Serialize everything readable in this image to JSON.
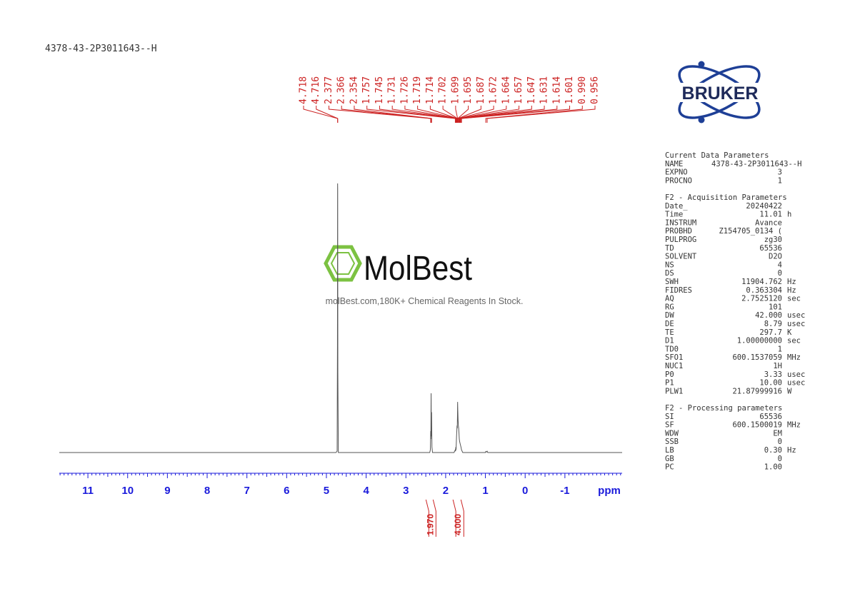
{
  "header": "4378-43-2P3011643--H",
  "chart_data": {
    "type": "line",
    "x_label": "ppm",
    "x_reversed": true,
    "xlim": [
      11.72,
      -2.44
    ],
    "xticks": [
      11,
      10,
      9,
      8,
      7,
      6,
      5,
      4,
      3,
      2,
      1,
      0,
      -1
    ],
    "ylim": [
      0,
      100
    ],
    "color": "#555555",
    "x": [
      11.72,
      4.76,
      4.73,
      4.722,
      4.718,
      4.716,
      4.712,
      4.7,
      2.4,
      2.385,
      2.377,
      2.372,
      2.366,
      2.36,
      2.354,
      2.345,
      2.33,
      1.79,
      1.757,
      1.751,
      1.745,
      1.738,
      1.731,
      1.726,
      1.719,
      1.714,
      1.708,
      1.702,
      1.699,
      1.695,
      1.687,
      1.68,
      1.672,
      1.664,
      1.657,
      1.647,
      1.631,
      1.614,
      1.601,
      1.57,
      1.0,
      0.99,
      0.975,
      0.956,
      0.94,
      -2.44
    ],
    "values": [
      0,
      0,
      0.5,
      40,
      100,
      98,
      30,
      0,
      0,
      1,
      8,
      5,
      22,
      6,
      15,
      2,
      0,
      0,
      1,
      0.5,
      2,
      1,
      4,
      6,
      8,
      10,
      9,
      14,
      18.8,
      16,
      12,
      10,
      9,
      7,
      5,
      4,
      3,
      2,
      1,
      0,
      0,
      0.4,
      0.2,
      0.5,
      0,
      0
    ],
    "peak_color": "#cc2222",
    "peaks": [
      {
        "value": 4.718,
        "label": "4.718"
      },
      {
        "value": 4.716,
        "label": "4.716"
      },
      {
        "value": 2.377,
        "label": "2.377"
      },
      {
        "value": 2.366,
        "label": "2.366"
      },
      {
        "value": 2.354,
        "label": "2.354"
      },
      {
        "value": 1.757,
        "label": "1.757"
      },
      {
        "value": 1.745,
        "label": "1.745"
      },
      {
        "value": 1.731,
        "label": "1.731"
      },
      {
        "value": 1.726,
        "label": "1.726"
      },
      {
        "value": 1.719,
        "label": "1.719"
      },
      {
        "value": 1.714,
        "label": "1.714"
      },
      {
        "value": 1.702,
        "label": "1.702"
      },
      {
        "value": 1.699,
        "label": "1.699"
      },
      {
        "value": 1.695,
        "label": "1.695"
      },
      {
        "value": 1.687,
        "label": "1.687"
      },
      {
        "value": 1.672,
        "label": "1.672"
      },
      {
        "value": 1.664,
        "label": "1.664"
      },
      {
        "value": 1.657,
        "label": "1.657"
      },
      {
        "value": 1.647,
        "label": "1.647"
      },
      {
        "value": 1.631,
        "label": "1.631"
      },
      {
        "value": 1.614,
        "label": "1.614"
      },
      {
        "value": 1.601,
        "label": "1.601"
      },
      {
        "value": 0.99,
        "label": "0.990"
      },
      {
        "value": 0.956,
        "label": "0.956"
      }
    ],
    "integrals": [
      {
        "from": 2.42,
        "to": 2.32,
        "value": 1.97,
        "label": "1.970"
      },
      {
        "from": 1.78,
        "to": 1.58,
        "value": 4.0,
        "label": "4.000"
      }
    ]
  },
  "watermark": {
    "brand": "MolBest",
    "tagline": "molBest.com,180K+ Chemical Reagents In Stock."
  },
  "logo": "BRUKER",
  "parameters": [
    {
      "title": "Current Data Parameters",
      "rows": [
        [
          "NAME",
          "4378-43-2P3011643--H"
        ],
        [
          "EXPNO",
          "3"
        ],
        [
          "PROCNO",
          "1"
        ]
      ]
    },
    {
      "title": "F2 - Acquisition Parameters",
      "rows": [
        [
          "Date_",
          "20240422"
        ],
        [
          "Time",
          "11.01",
          "h"
        ],
        [
          "INSTRUM",
          "Avance"
        ],
        [
          "PROBHD",
          "Z154705_0134 ("
        ],
        [
          "PULPROG",
          "zg30"
        ],
        [
          "TD",
          "65536"
        ],
        [
          "SOLVENT",
          "D2O"
        ],
        [
          "NS",
          "4"
        ],
        [
          "DS",
          "0"
        ],
        [
          "SWH",
          "11904.762",
          "Hz"
        ],
        [
          "FIDRES",
          "0.363304",
          "Hz"
        ],
        [
          "AQ",
          "2.7525120",
          "sec"
        ],
        [
          "RG",
          "101"
        ],
        [
          "DW",
          "42.000",
          "usec"
        ],
        [
          "DE",
          "8.79",
          "usec"
        ],
        [
          "TE",
          "297.7",
          "K"
        ],
        [
          "D1",
          "1.00000000",
          "sec"
        ],
        [
          "TD0",
          "1"
        ],
        [
          "SFO1",
          "600.1537059",
          "MHz"
        ],
        [
          "NUC1",
          "1H"
        ],
        [
          "P0",
          "3.33",
          "usec"
        ],
        [
          "P1",
          "10.00",
          "usec"
        ],
        [
          "PLW1",
          "21.87999916",
          "W"
        ]
      ]
    },
    {
      "title": "F2 - Processing parameters",
      "rows": [
        [
          "SI",
          "65536"
        ],
        [
          "SF",
          "600.1500019",
          "MHz"
        ],
        [
          "WDW",
          "EM"
        ],
        [
          "SSB",
          "0"
        ],
        [
          "LB",
          "0.30",
          "Hz"
        ],
        [
          "GB",
          "0"
        ],
        [
          "PC",
          "1.00"
        ]
      ]
    }
  ]
}
